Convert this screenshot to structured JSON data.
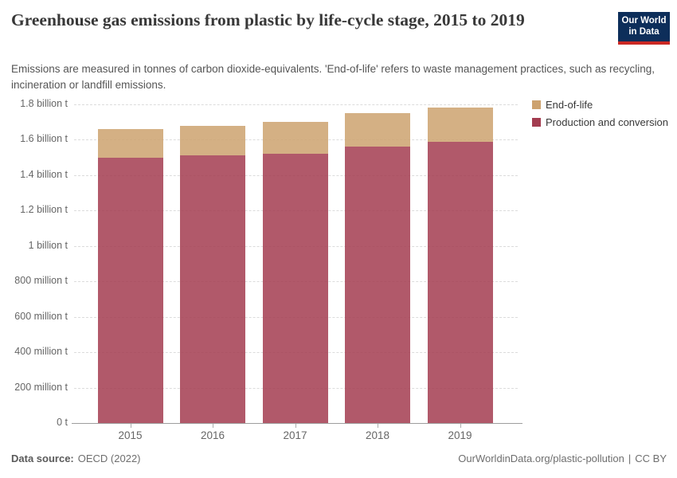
{
  "header": {
    "title": "Greenhouse gas emissions from plastic by life-cycle stage, 2015 to 2019",
    "subtitle": "Emissions are measured in tonnes of carbon dioxide-equivalents. 'End-of-life' refers to waste management practices, such as recycling, incineration or landfill emissions.",
    "logo": {
      "line1": "Our World",
      "line2": "in Data"
    }
  },
  "chart_data": {
    "type": "bar",
    "stacked": true,
    "title": "Greenhouse gas emissions from plastic by life-cycle stage, 2015 to 2019",
    "unit": "billion tonnes of carbon dioxide-equivalents",
    "categories": [
      "2015",
      "2016",
      "2017",
      "2018",
      "2019"
    ],
    "series": [
      {
        "name": "Production and conversion",
        "color": "#A33C50",
        "values": [
          1.5,
          1.51,
          1.52,
          1.56,
          1.59
        ]
      },
      {
        "name": "End-of-life",
        "color": "#CDA26F",
        "values": [
          0.16,
          0.17,
          0.18,
          0.19,
          0.19
        ]
      }
    ],
    "totals": [
      1.66,
      1.68,
      1.7,
      1.75,
      1.78
    ],
    "legend": [
      {
        "label": "End-of-life",
        "color": "#CDA26F"
      },
      {
        "label": "Production and conversion",
        "color": "#A33C50"
      }
    ],
    "legend_position": "top-right",
    "grid": "dashed horizontal gridlines",
    "ylim": [
      0,
      1.8
    ],
    "yticks": [
      {
        "v": 1.8,
        "label": "1.8 billion t"
      },
      {
        "v": 1.6,
        "label": "1.6 billion t"
      },
      {
        "v": 1.4,
        "label": "1.4 billion t"
      },
      {
        "v": 1.2,
        "label": "1.2 billion t"
      },
      {
        "v": 1.0,
        "label": "1 billion t"
      },
      {
        "v": 0.8,
        "label": "800 million t"
      },
      {
        "v": 0.6,
        "label": "600 million t"
      },
      {
        "v": 0.4,
        "label": "400 million t"
      },
      {
        "v": 0.2,
        "label": "200 million t"
      },
      {
        "v": 0,
        "label": "0 t"
      }
    ],
    "xlabel": "",
    "ylabel": ""
  },
  "footer": {
    "source_label": "Data source:",
    "source_value": "OECD (2022)",
    "link": "OurWorldinData.org/plastic-pollution",
    "separator": "|",
    "license": "CC BY"
  }
}
